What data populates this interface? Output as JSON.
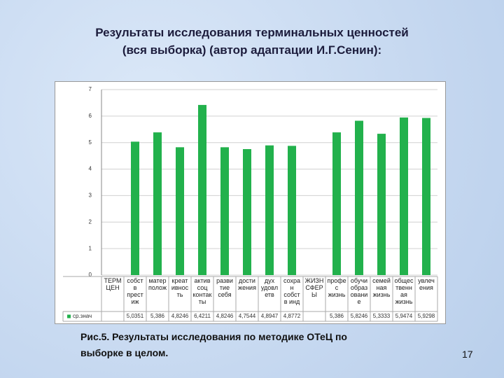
{
  "chart_data": {
    "type": "bar",
    "title": "Результаты исследования терминальных ценностей\n(вся выборка) (автор адаптации И.Г.Сенин):",
    "categories": [
      "ТЕРМ\nЦЕН",
      "собст\nв\nпрест\nиж",
      "матер\nполож",
      "креат\nивнос\nть",
      "актив\nсоц\nконтак\nты",
      "разви\nтие\nсебя",
      "дости\nжения",
      "дух\nудовл\nетв",
      "сохра\nн\nсобст\nв инд",
      "ЖИЗН\nСФЕР\nЫ",
      "профе\nс\nжизнь",
      "обучи\nобраз\nовани\nе",
      "семей\nная\nжизнь",
      "общес\nтвенн\nая\nжизнь",
      "увлеч\nения"
    ],
    "series": [
      {
        "name": "ср.знач",
        "color": "#22b14c",
        "values": [
          null,
          5.0351,
          5.386,
          4.8246,
          6.4211,
          4.8246,
          4.7544,
          4.8947,
          4.8772,
          null,
          5.386,
          5.8246,
          5.3333,
          5.9474,
          5.9298
        ],
        "value_labels": [
          null,
          "5,0351",
          "5,386",
          "4,8246",
          "6,4211",
          "4,8246",
          "4,7544",
          "4,8947",
          "4,8772",
          null,
          "5,386",
          "5,8246",
          "5,3333",
          "5,9474",
          "5,9298"
        ]
      }
    ],
    "ylim": [
      0,
      7
    ],
    "yticks": [
      0,
      1,
      2,
      3,
      4,
      5,
      6,
      7
    ],
    "grid": true,
    "caption": "Рис.5. Результаты исследования по методике ОТеЦ по\nвыборке в  целом.",
    "page_number": "17"
  }
}
